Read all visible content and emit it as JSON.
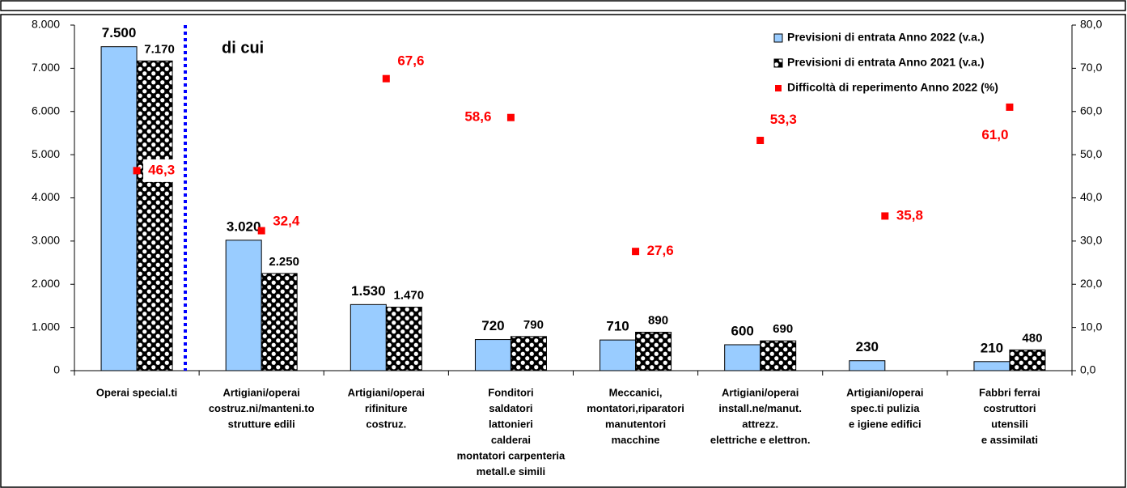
{
  "chart_data": {
    "type": "bar",
    "annotations": [
      "di cui"
    ],
    "categories": [
      [
        "Operai special.ti"
      ],
      [
        "Artigiani/operai",
        "costruz.ni/manteni.to",
        "strutture edili"
      ],
      [
        "Artigiani/operai",
        "rifiniture",
        "costruz."
      ],
      [
        "Fonditori",
        "saldatori",
        "lattonieri",
        "calderai",
        "montatori carpenteria",
        "metall.e simili"
      ],
      [
        "Meccanici,",
        "montatori,riparatori",
        "manutentori",
        "macchine"
      ],
      [
        "Artigiani/operai",
        "install.ne/manut.",
        "attrezz.",
        "elettriche e elettron."
      ],
      [
        "Artigiani/operai",
        "spec.ti pulizia",
        "e igiene edifici"
      ],
      [
        "Fabbri ferrai",
        "costruttori",
        "utensili",
        "e assimilati"
      ]
    ],
    "series": [
      {
        "name": "Previsioni di entrata Anno 2022 (v.a.)",
        "color": "#99ccff",
        "values": [
          7500,
          3020,
          1530,
          720,
          710,
          600,
          230,
          210
        ],
        "value_labels": [
          "7.500",
          "3.020",
          "1.530",
          "720",
          "710",
          "600",
          "230",
          "210"
        ]
      },
      {
        "name": "Previsioni di entrata Anno 2021 (v.a.)",
        "color": "#000000",
        "values": [
          7170,
          2250,
          1470,
          790,
          890,
          690,
          null,
          480
        ],
        "value_labels": [
          "7.170",
          "2.250",
          "1.470",
          "790",
          "890",
          "690",
          null,
          "480"
        ]
      },
      {
        "name": "Difficoltà di reperimento Anno 2022 (%)",
        "type": "scatter",
        "axis": "y2",
        "color": "#ff0000",
        "values": [
          46.3,
          32.4,
          67.6,
          58.6,
          27.6,
          53.3,
          35.8,
          61.0
        ],
        "value_labels": [
          "46,3",
          "32,4",
          "67,6",
          "58,6",
          "27,6",
          "53,3",
          "35,8",
          "61,0"
        ]
      }
    ],
    "ylim": [
      0,
      8000
    ],
    "yticks": [
      0,
      {
        "value": 1000,
        "label": "1.000"
      },
      {
        "value": 2000,
        "label": "2.000"
      },
      {
        "value": 3000,
        "label": "3.000"
      },
      {
        "value": 4000,
        "label": "4.000"
      },
      {
        "value": 5000,
        "label": "5.000"
      },
      {
        "value": 6000,
        "label": "6.000"
      },
      {
        "value": 7000,
        "label": "7.000"
      },
      {
        "value": 8000,
        "label": "8.000"
      }
    ],
    "y2lim": [
      0,
      80
    ],
    "y2ticks": [
      {
        "value": 0,
        "label": "0,0"
      },
      {
        "value": 10,
        "label": "10,0"
      },
      {
        "value": 20,
        "label": "20,0"
      },
      {
        "value": 30,
        "label": "30,0"
      },
      {
        "value": 40,
        "label": "40,0"
      },
      {
        "value": 50,
        "label": "50,0"
      },
      {
        "value": 60,
        "label": "60,0"
      },
      {
        "value": 70,
        "label": "70,0"
      },
      {
        "value": 80,
        "label": "80,0"
      }
    ],
    "legend": "top-right",
    "grid": false
  }
}
